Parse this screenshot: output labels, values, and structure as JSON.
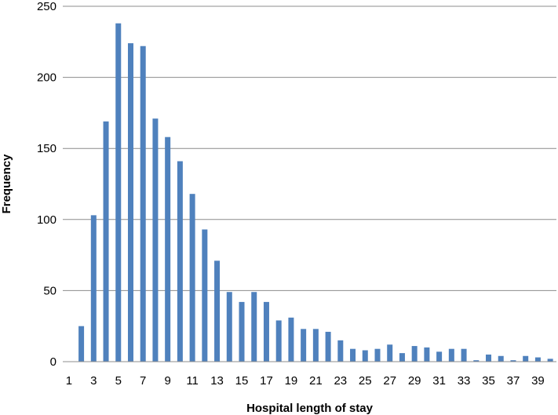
{
  "chart_data": {
    "type": "bar",
    "title": "",
    "xlabel": "Hospital length of stay",
    "ylabel": "Frequency",
    "ylim": [
      0,
      250
    ],
    "yticks": [
      0,
      50,
      100,
      150,
      200,
      250
    ],
    "grid": true,
    "legend": "none",
    "categories": [
      "1",
      "2",
      "3",
      "4",
      "5",
      "6",
      "7",
      "8",
      "9",
      "10",
      "11",
      "12",
      "13",
      "14",
      "15",
      "16",
      "17",
      "18",
      "19",
      "20",
      "21",
      "22",
      "23",
      "24",
      "25",
      "26",
      "27",
      "28",
      "29",
      "30",
      "31",
      "32",
      "33",
      "34",
      "35",
      "36",
      "37",
      "38",
      "39",
      "40"
    ],
    "x_tick_labels": [
      "1",
      "3",
      "5",
      "7",
      "9",
      "11",
      "13",
      "15",
      "17",
      "19",
      "21",
      "23",
      "25",
      "27",
      "29",
      "31",
      "33",
      "35",
      "37",
      "39"
    ],
    "values": [
      0,
      25,
      103,
      169,
      238,
      224,
      222,
      171,
      158,
      141,
      118,
      93,
      71,
      49,
      42,
      49,
      42,
      29,
      31,
      23,
      23,
      21,
      15,
      9,
      8,
      9,
      12,
      6,
      11,
      10,
      7,
      9,
      9,
      1,
      5,
      4,
      1,
      4,
      3,
      2
    ],
    "bar_color": "#4f81bd",
    "grid_color": "#8c8c8c"
  }
}
